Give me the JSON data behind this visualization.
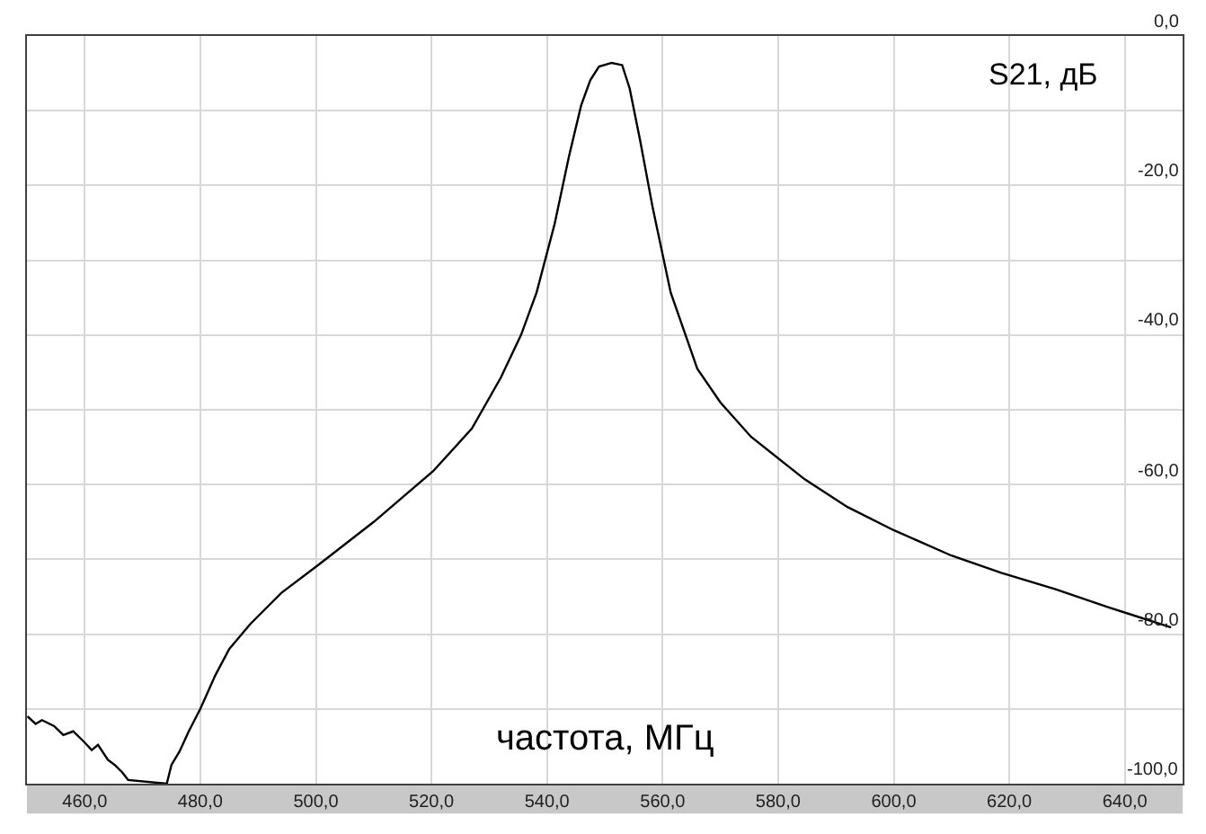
{
  "chart_data": {
    "type": "line",
    "xlabel": "частота, МГц",
    "ylabel": "S21, дБ",
    "x": [
      450.1,
      451.5,
      452.6,
      454.7,
      456.3,
      458.0,
      460.0,
      461.2,
      462.3,
      464.0,
      465.2,
      466.5,
      467.5,
      474.2,
      475.0,
      476.4,
      478.0,
      480.0,
      482.6,
      485.0,
      488.7,
      494.0,
      500.5,
      510.0,
      520.3,
      527.0,
      532.0,
      535.5,
      538.2,
      541.3,
      543.8,
      545.9,
      547.5,
      549.0,
      551.2,
      553.0,
      554.3,
      556.1,
      558.3,
      561.4,
      566.0,
      570.0,
      575.3,
      584.6,
      592.0,
      600.0,
      610.0,
      618.6,
      628.0,
      637.1,
      648.0
    ],
    "series": [
      {
        "color": "#000000",
        "values": [
          -91.0,
          -92.0,
          -91.5,
          -92.3,
          -93.5,
          -93.0,
          -94.5,
          -95.5,
          -94.8,
          -96.8,
          -97.5,
          -98.5,
          -99.5,
          -100.0,
          -97.5,
          -95.7,
          -93.0,
          -90.0,
          -85.5,
          -82.0,
          -78.6,
          -74.5,
          -70.7,
          -65.0,
          -58.2,
          -52.5,
          -45.7,
          -40.0,
          -34.3,
          -25.2,
          -16.1,
          -9.3,
          -5.9,
          -4.1,
          -3.6,
          -3.9,
          -7.0,
          -13.9,
          -23.0,
          -34.3,
          -44.5,
          -49.0,
          -53.6,
          -59.3,
          -63.0,
          -66.1,
          -69.5,
          -71.8,
          -74.0,
          -76.4,
          -79.1
        ]
      }
    ],
    "xlim": [
      450,
      650
    ],
    "xticks": [
      {
        "value": 460,
        "label": "460,0"
      },
      {
        "value": 480,
        "label": "480,0"
      },
      {
        "value": 500,
        "label": "500,0"
      },
      {
        "value": 520,
        "label": "520,0"
      },
      {
        "value": 540,
        "label": "540,0"
      },
      {
        "value": 560,
        "label": "560,0"
      },
      {
        "value": 580,
        "label": "580,0"
      },
      {
        "value": 600,
        "label": "600,0"
      },
      {
        "value": 620,
        "label": "620,0"
      },
      {
        "value": 640,
        "label": "640,0"
      }
    ],
    "ylim": [
      -100,
      0
    ],
    "yticks": [
      {
        "value": 0,
        "label": "0,0"
      },
      {
        "value": -10,
        "label": null
      },
      {
        "value": -20,
        "label": "-20,0"
      },
      {
        "value": -30,
        "label": null
      },
      {
        "value": -40,
        "label": "-40,0"
      },
      {
        "value": -50,
        "label": null
      },
      {
        "value": -60,
        "label": "-60,0"
      },
      {
        "value": -70,
        "label": null
      },
      {
        "value": -80,
        "label": "-80,0"
      },
      {
        "value": -90,
        "label": null
      },
      {
        "value": -100,
        "label": "-100,0"
      }
    ],
    "grid": true,
    "line_style": "solid",
    "marker": "none"
  }
}
